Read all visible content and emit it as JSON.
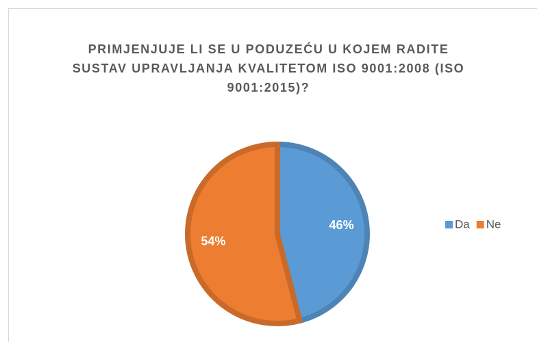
{
  "chart_data": {
    "type": "pie",
    "title": "PRIMJENJUJE LI SE U PODUZEĆU U KOJEM RADITE SUSTAV UPRAVLJANJA KVALITETOM ISO 9001:2008 (ISO 9001:2015)?",
    "categories": [
      "Da",
      "Ne"
    ],
    "values": [
      46,
      54
    ],
    "value_labels": [
      "46%",
      "54%"
    ],
    "colors": [
      "#5b9bd5",
      "#ed7d31"
    ],
    "legend": "right"
  }
}
